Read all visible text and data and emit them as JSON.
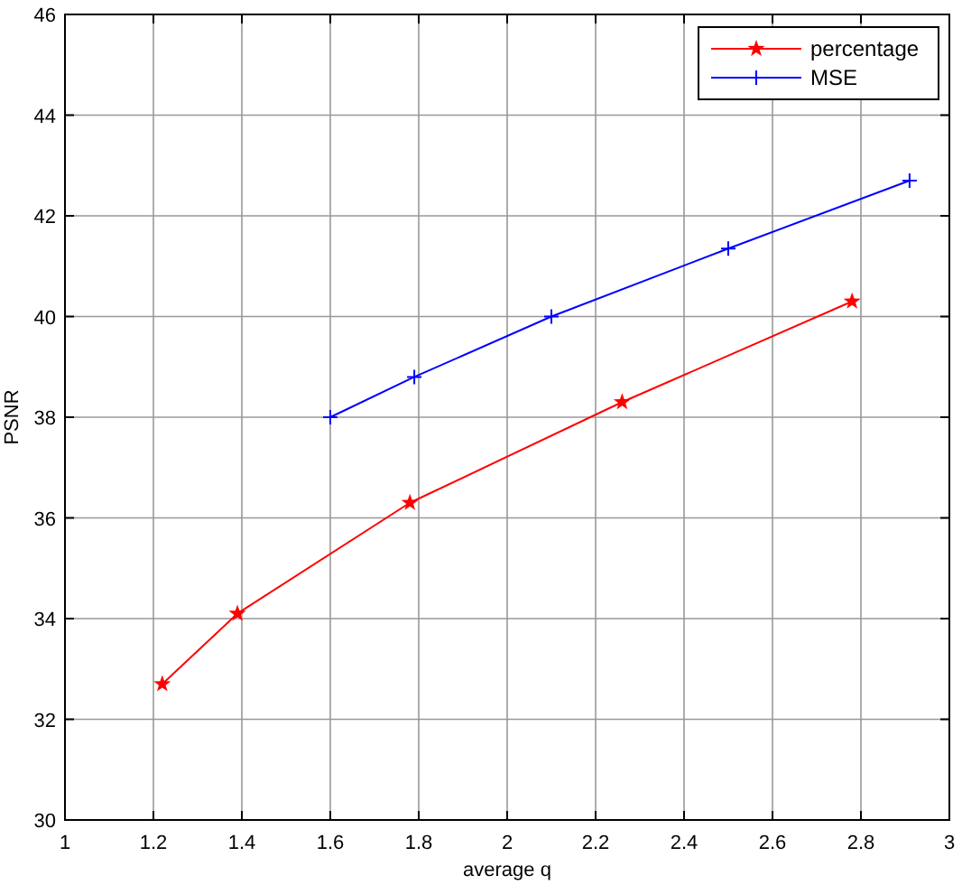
{
  "chart_data": {
    "type": "line",
    "xlabel": "average q",
    "ylabel": "PSNR",
    "xlim": [
      1,
      3
    ],
    "ylim": [
      30,
      46
    ],
    "xticks": [
      1,
      1.2,
      1.4,
      1.6,
      1.8,
      2,
      2.2,
      2.4,
      2.6,
      2.8,
      3
    ],
    "yticks": [
      30,
      32,
      34,
      36,
      38,
      40,
      42,
      44,
      46
    ],
    "grid": true,
    "legend": "top right",
    "series": [
      {
        "name": "percentage",
        "color": "#ff0000",
        "marker": "star",
        "x": [
          1.22,
          1.39,
          1.78,
          2.26,
          2.78
        ],
        "values": [
          32.7,
          34.1,
          36.3,
          38.3,
          40.3
        ]
      },
      {
        "name": "MSE",
        "color": "#0000ff",
        "marker": "cross",
        "x": [
          1.6,
          1.79,
          2.1,
          2.5,
          2.91
        ],
        "values": [
          38.0,
          38.8,
          40.0,
          41.35,
          42.7
        ]
      }
    ]
  }
}
